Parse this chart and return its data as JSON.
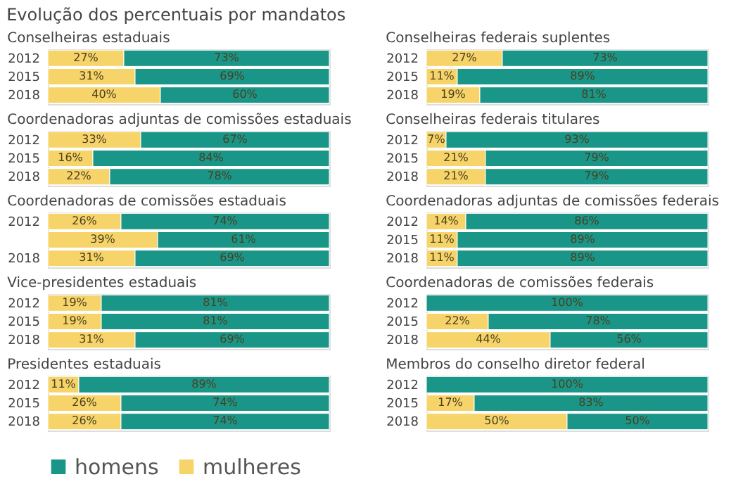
{
  "chart_data": [
    {
      "type": "bar",
      "orientation": "horizontal",
      "stacked": true,
      "title": "Evolução dos percentuais por mandatos",
      "subtitle": "Conselheiras estaduais",
      "categories": [
        "2012",
        "2015",
        "2018"
      ],
      "tick_labels": "y",
      "legend": false,
      "series": [
        {
          "color": "#f7d46a",
          "values": [
            27,
            31,
            40
          ],
          "value_labels": [
            "27%",
            "31%",
            "40%"
          ]
        },
        {
          "color": "#1a9688",
          "values": [
            73,
            69,
            60
          ],
          "value_labels": [
            "73%",
            "69%",
            "60%"
          ]
        }
      ]
    },
    {
      "type": "bar",
      "orientation": "horizontal",
      "stacked": true,
      "subtitle": "Coordenadoras adjuntas de comissões estaduais",
      "categories": [
        "2012",
        "2015",
        "2018"
      ],
      "tick_labels": "y",
      "legend": false,
      "series": [
        {
          "color": "#f7d46a",
          "values": [
            33,
            16,
            22
          ],
          "value_labels": [
            "33%",
            "16%",
            "22%"
          ]
        },
        {
          "color": "#1a9688",
          "values": [
            67,
            84,
            78
          ],
          "value_labels": [
            "67%",
            "84%",
            "78%"
          ]
        }
      ]
    },
    {
      "type": "bar",
      "orientation": "horizontal",
      "stacked": true,
      "subtitle": "Coordenadoras de comissões estaduais",
      "categories": [
        "2012",
        null,
        "2018"
      ],
      "tick_labels": "y",
      "legend": false,
      "series": [
        {
          "color": "#f7d46a",
          "values": [
            26,
            39,
            31
          ],
          "value_labels": [
            "26%",
            "39%",
            "31%"
          ]
        },
        {
          "color": "#1a9688",
          "values": [
            74,
            61,
            69
          ],
          "value_labels": [
            "74%",
            "61%",
            "69%"
          ]
        }
      ]
    },
    {
      "type": "bar",
      "orientation": "horizontal",
      "stacked": true,
      "subtitle": "Vice-presidentes estaduais",
      "categories": [
        "2012",
        "2015",
        "2018"
      ],
      "tick_labels": "y",
      "legend": false,
      "series": [
        {
          "color": "#f7d46a",
          "values": [
            19,
            19,
            31
          ],
          "value_labels": [
            "19%",
            "19%",
            "31%"
          ]
        },
        {
          "color": "#1a9688",
          "values": [
            81,
            81,
            69
          ],
          "value_labels": [
            "81%",
            "81%",
            "69%"
          ]
        }
      ]
    },
    {
      "type": "bar",
      "orientation": "horizontal",
      "stacked": true,
      "subtitle": "Presidentes estaduais",
      "categories": [
        "2012",
        "2015",
        "2018"
      ],
      "tick_labels": "y",
      "legend": "bottom right",
      "series": [
        {
          "name": "mulheres",
          "color": "#f7d46a",
          "values": [
            11,
            26,
            26
          ],
          "value_labels": [
            "11%",
            "26%",
            "26%"
          ]
        },
        {
          "name": "homens",
          "color": "#1a9688",
          "values": [
            89,
            74,
            74
          ],
          "value_labels": [
            "89%",
            "74%",
            "74%"
          ]
        }
      ]
    },
    {
      "type": "bar",
      "orientation": "horizontal",
      "stacked": true,
      "subtitle": "Conselheiras federais suplentes",
      "categories": [
        "2012",
        "2015",
        "2018"
      ],
      "tick_labels": "y",
      "legend": false,
      "series": [
        {
          "color": "#f7d46a",
          "values": [
            27,
            11,
            19
          ],
          "value_labels": [
            "27%",
            "11%",
            "19%"
          ]
        },
        {
          "color": "#1a9688",
          "values": [
            73,
            89,
            81
          ],
          "value_labels": [
            "73%",
            "89%",
            "81%"
          ]
        }
      ]
    },
    {
      "type": "bar",
      "orientation": "horizontal",
      "stacked": true,
      "subtitle": "Conselheiras federais titulares",
      "categories": [
        "2012",
        "2015",
        "2018"
      ],
      "tick_labels": "y",
      "legend": false,
      "series": [
        {
          "color": "#f7d46a",
          "values": [
            7,
            21,
            21
          ],
          "value_labels": [
            "7%",
            "21%",
            "21%"
          ]
        },
        {
          "color": "#1a9688",
          "values": [
            93,
            79,
            79
          ],
          "value_labels": [
            "93%",
            "79%",
            "79%"
          ]
        }
      ]
    },
    {
      "type": "bar",
      "orientation": "horizontal",
      "stacked": true,
      "subtitle": "Coordenadoras adjuntas de comissões federais",
      "categories": [
        "2012",
        "2015",
        "2018"
      ],
      "tick_labels": "y",
      "legend": false,
      "series": [
        {
          "color": "#f7d46a",
          "values": [
            14,
            11,
            11
          ],
          "value_labels": [
            "14%",
            "11%",
            "11%"
          ]
        },
        {
          "color": "#1a9688",
          "values": [
            86,
            89,
            89
          ],
          "value_labels": [
            "86%",
            "89%",
            "89%"
          ]
        }
      ]
    },
    {
      "type": "bar",
      "orientation": "horizontal",
      "stacked": true,
      "subtitle": "Coordenadoras de comissões federais",
      "categories": [
        "2012",
        "2015",
        "2018"
      ],
      "tick_labels": "y",
      "legend": false,
      "series": [
        {
          "color": "#f7d46a",
          "values": [
            0,
            22,
            44
          ],
          "value_labels": [
            null,
            "22%",
            "44%"
          ]
        },
        {
          "color": "#1a9688",
          "values": [
            100,
            78,
            56
          ],
          "value_labels": [
            "100%",
            "78%",
            "56%"
          ]
        }
      ]
    },
    {
      "type": "bar",
      "orientation": "horizontal",
      "stacked": true,
      "subtitle": "Membros do conselho diretor federal",
      "categories": [
        "2012",
        "2015",
        "2018"
      ],
      "tick_labels": "y",
      "legend": false,
      "series": [
        {
          "color": "#f7d46a",
          "values": [
            0,
            17,
            50
          ],
          "value_labels": [
            null,
            "17%",
            "50%"
          ]
        },
        {
          "color": "#1a9688",
          "values": [
            100,
            83,
            50
          ],
          "value_labels": [
            "100%",
            "83%",
            "50%"
          ]
        }
      ]
    }
  ]
}
